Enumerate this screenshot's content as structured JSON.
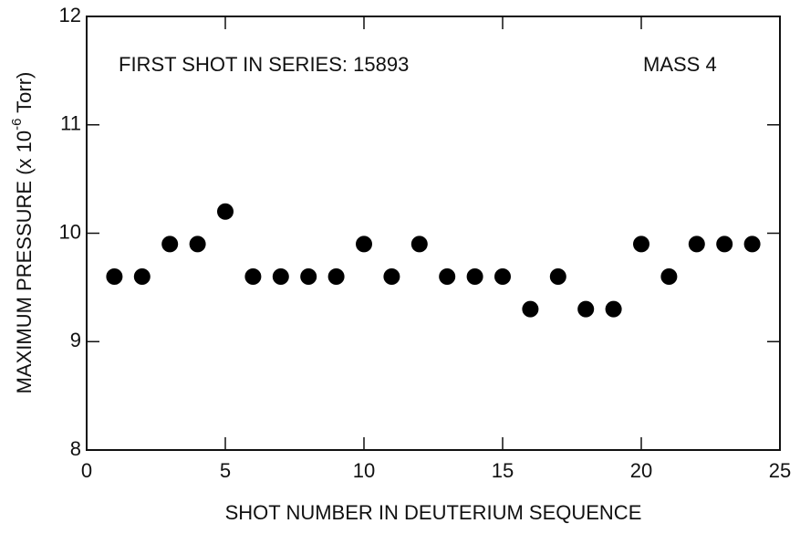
{
  "chart_data": {
    "type": "scatter",
    "xlabel": "SHOT NUMBER IN DEUTERIUM SEQUENCE",
    "ylabel": [
      "MAXIMUM PRESSURE (x 10",
      "-6",
      " Torr)"
    ],
    "annotations": [
      "FIRST SHOT IN SERIES: 15893",
      "MASS 4"
    ],
    "x": [
      1,
      2,
      3,
      4,
      5,
      6,
      7,
      8,
      9,
      10,
      11,
      12,
      13,
      14,
      15,
      16,
      17,
      18,
      19,
      20,
      21,
      22,
      23,
      24
    ],
    "values": [
      9.6,
      9.6,
      9.9,
      9.9,
      10.2,
      9.6,
      9.6,
      9.6,
      9.6,
      9.9,
      9.6,
      9.9,
      9.6,
      9.6,
      9.6,
      9.3,
      9.6,
      9.3,
      9.3,
      9.9,
      9.6,
      9.9,
      9.9,
      9.9
    ],
    "color": "#000000",
    "xlim": [
      0,
      25
    ],
    "xticks": [
      0,
      5,
      10,
      15,
      20,
      25
    ],
    "ylim": [
      8,
      12
    ],
    "yticks": [
      8,
      9,
      10,
      11,
      12
    ],
    "grid": false
  }
}
